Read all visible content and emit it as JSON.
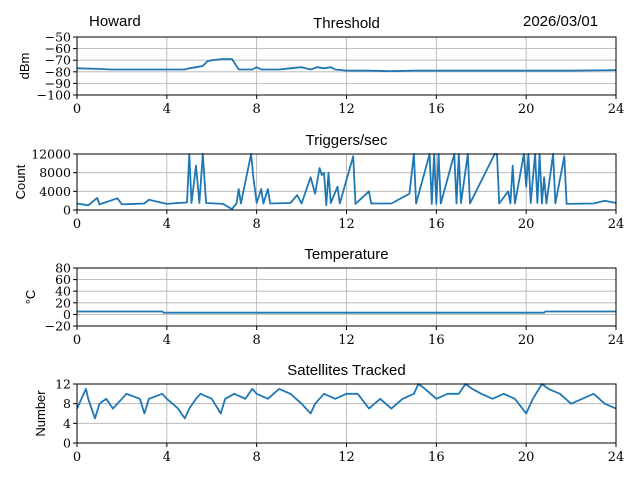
{
  "header": {
    "station": "Howard",
    "date": "2026/03/01"
  },
  "colors": {
    "line": "#1f77b4",
    "grid": "#b0b0b0"
  },
  "chart_data": [
    {
      "type": "line",
      "title": "Threshold",
      "xlabel": "",
      "ylabel": "dBm",
      "xlim": [
        0,
        24
      ],
      "ylim": [
        -100,
        -50
      ],
      "xticks": [
        0,
        4,
        8,
        12,
        16,
        20,
        24
      ],
      "yticks": [
        -50,
        -60,
        -70,
        -80,
        -90,
        -100
      ],
      "grid": true,
      "points": [
        [
          0,
          -77
        ],
        [
          1,
          -77.5
        ],
        [
          1.5,
          -78
        ],
        [
          2,
          -78
        ],
        [
          3,
          -78
        ],
        [
          4,
          -78
        ],
        [
          4.8,
          -78
        ],
        [
          5,
          -77
        ],
        [
          5.3,
          -76
        ],
        [
          5.6,
          -75
        ],
        [
          5.8,
          -71
        ],
        [
          6,
          -70
        ],
        [
          6.5,
          -69
        ],
        [
          6.9,
          -69
        ],
        [
          7.2,
          -78
        ],
        [
          7.8,
          -78
        ],
        [
          8,
          -76
        ],
        [
          8.2,
          -78
        ],
        [
          9,
          -78
        ],
        [
          9.5,
          -77
        ],
        [
          10,
          -76
        ],
        [
          10.4,
          -78
        ],
        [
          10.7,
          -76
        ],
        [
          11,
          -77
        ],
        [
          11.3,
          -76
        ],
        [
          11.5,
          -78
        ],
        [
          12,
          -79
        ],
        [
          13,
          -79
        ],
        [
          14,
          -79.5
        ],
        [
          15,
          -79
        ],
        [
          16,
          -79
        ],
        [
          18,
          -79
        ],
        [
          20,
          -79
        ],
        [
          22,
          -79
        ],
        [
          24,
          -78.5
        ]
      ]
    },
    {
      "type": "line",
      "title": "Triggers/sec",
      "xlabel": "",
      "ylabel": "Count",
      "xlim": [
        0,
        24
      ],
      "ylim": [
        0,
        12000
      ],
      "xticks": [
        0,
        4,
        8,
        12,
        16,
        20,
        24
      ],
      "yticks": [
        12000,
        8000,
        4000,
        0
      ],
      "grid": true,
      "points": [
        [
          0,
          1400
        ],
        [
          0.5,
          1000
        ],
        [
          0.9,
          2600
        ],
        [
          1,
          1200
        ],
        [
          1.8,
          2500
        ],
        [
          2,
          1200
        ],
        [
          3,
          1400
        ],
        [
          3.2,
          2200
        ],
        [
          4,
          1300
        ],
        [
          4.5,
          1500
        ],
        [
          4.9,
          1600
        ],
        [
          5,
          12000
        ],
        [
          5.1,
          1500
        ],
        [
          5.3,
          9500
        ],
        [
          5.45,
          1500
        ],
        [
          5.6,
          12000
        ],
        [
          5.75,
          1500
        ],
        [
          6.5,
          1300
        ],
        [
          6.9,
          200
        ],
        [
          7.1,
          1400
        ],
        [
          7.2,
          4500
        ],
        [
          7.3,
          1400
        ],
        [
          7.75,
          12000
        ],
        [
          7.85,
          7000
        ],
        [
          8,
          1500
        ],
        [
          8.2,
          4500
        ],
        [
          8.3,
          1400
        ],
        [
          8.5,
          4500
        ],
        [
          8.6,
          1400
        ],
        [
          9.5,
          1500
        ],
        [
          9.8,
          3200
        ],
        [
          10,
          1400
        ],
        [
          10.4,
          7000
        ],
        [
          10.6,
          3500
        ],
        [
          10.8,
          9000
        ],
        [
          10.9,
          7500
        ],
        [
          11,
          8000
        ],
        [
          11.1,
          1000
        ],
        [
          11.2,
          8000
        ],
        [
          11.3,
          1500
        ],
        [
          11.6,
          5000
        ],
        [
          11.7,
          1400
        ],
        [
          12.3,
          11500
        ],
        [
          12.4,
          1300
        ],
        [
          13,
          4000
        ],
        [
          13.1,
          1400
        ],
        [
          14,
          1400
        ],
        [
          14.8,
          3500
        ],
        [
          15,
          12000
        ],
        [
          15.1,
          1400
        ],
        [
          15.7,
          12000
        ],
        [
          15.8,
          1300
        ],
        [
          15.9,
          12000
        ],
        [
          16,
          1300
        ],
        [
          16.1,
          12000
        ],
        [
          16.2,
          1400
        ],
        [
          16.8,
          12000
        ],
        [
          16.9,
          1400
        ],
        [
          17,
          12000
        ],
        [
          17.1,
          1500
        ],
        [
          17.4,
          12000
        ],
        [
          17.5,
          1400
        ],
        [
          18.6,
          12000
        ],
        [
          18.7,
          12000
        ],
        [
          18.8,
          1400
        ],
        [
          19.2,
          4000
        ],
        [
          19.3,
          1400
        ],
        [
          19.4,
          9500
        ],
        [
          19.5,
          1400
        ],
        [
          19.9,
          12000
        ],
        [
          20,
          5000
        ],
        [
          20.1,
          12000
        ],
        [
          20.2,
          1500
        ],
        [
          20.4,
          12000
        ],
        [
          20.5,
          1500
        ],
        [
          20.6,
          12000
        ],
        [
          20.7,
          1400
        ],
        [
          20.8,
          7000
        ],
        [
          20.9,
          1400
        ],
        [
          21.2,
          12000
        ],
        [
          21.3,
          1400
        ],
        [
          21.7,
          11500
        ],
        [
          21.8,
          1300
        ],
        [
          23,
          1400
        ],
        [
          23.5,
          2000
        ],
        [
          24,
          1500
        ]
      ]
    },
    {
      "type": "line",
      "title": "Temperature",
      "xlabel": "",
      "ylabel": "°C",
      "xlim": [
        0,
        24
      ],
      "ylim": [
        -20,
        80
      ],
      "xticks": [
        0,
        4,
        8,
        12,
        16,
        20,
        24
      ],
      "yticks": [
        80,
        60,
        40,
        20,
        0,
        -20
      ],
      "grid": true,
      "points": [
        [
          0,
          5
        ],
        [
          3.8,
          5
        ],
        [
          3.85,
          3
        ],
        [
          20.8,
          3
        ],
        [
          20.85,
          5
        ],
        [
          24,
          5
        ]
      ]
    },
    {
      "type": "line",
      "title": "Satellites Tracked",
      "xlabel": "",
      "ylabel": "Number",
      "xlim": [
        0,
        24
      ],
      "ylim": [
        0,
        12
      ],
      "xticks": [
        0,
        4,
        8,
        12,
        16,
        20,
        24
      ],
      "yticks": [
        12,
        8,
        4,
        0
      ],
      "grid": true,
      "points": [
        [
          0,
          7
        ],
        [
          0.2,
          9
        ],
        [
          0.4,
          11
        ],
        [
          0.5,
          9
        ],
        [
          0.8,
          5
        ],
        [
          1,
          8
        ],
        [
          1.3,
          9
        ],
        [
          1.6,
          7
        ],
        [
          2,
          9
        ],
        [
          2.2,
          10
        ],
        [
          2.8,
          9
        ],
        [
          3,
          6
        ],
        [
          3.2,
          9
        ],
        [
          3.8,
          10
        ],
        [
          4,
          9
        ],
        [
          4.5,
          7
        ],
        [
          4.8,
          5
        ],
        [
          5,
          7
        ],
        [
          5.3,
          9
        ],
        [
          5.5,
          10
        ],
        [
          6,
          9
        ],
        [
          6.4,
          6
        ],
        [
          6.6,
          9
        ],
        [
          7,
          10
        ],
        [
          7.5,
          9
        ],
        [
          7.8,
          11
        ],
        [
          8,
          10
        ],
        [
          8.5,
          9
        ],
        [
          9,
          11
        ],
        [
          9.5,
          10
        ],
        [
          10,
          8
        ],
        [
          10.4,
          6
        ],
        [
          10.6,
          8
        ],
        [
          11,
          10
        ],
        [
          11.5,
          9
        ],
        [
          12,
          10
        ],
        [
          12.5,
          10
        ],
        [
          13,
          7
        ],
        [
          13.5,
          9
        ],
        [
          14,
          7
        ],
        [
          14.5,
          9
        ],
        [
          15,
          10
        ],
        [
          15.2,
          12
        ],
        [
          15.5,
          11
        ],
        [
          16,
          9
        ],
        [
          16.5,
          10
        ],
        [
          17,
          10
        ],
        [
          17.3,
          12
        ],
        [
          17.6,
          11
        ],
        [
          18,
          10
        ],
        [
          18.5,
          9
        ],
        [
          19,
          10
        ],
        [
          19.5,
          9
        ],
        [
          20,
          6
        ],
        [
          20.3,
          9
        ],
        [
          20.7,
          12
        ],
        [
          21,
          11
        ],
        [
          21.5,
          10
        ],
        [
          22,
          8
        ],
        [
          22.5,
          9
        ],
        [
          23,
          10
        ],
        [
          23.5,
          8
        ],
        [
          24,
          7
        ]
      ]
    }
  ]
}
